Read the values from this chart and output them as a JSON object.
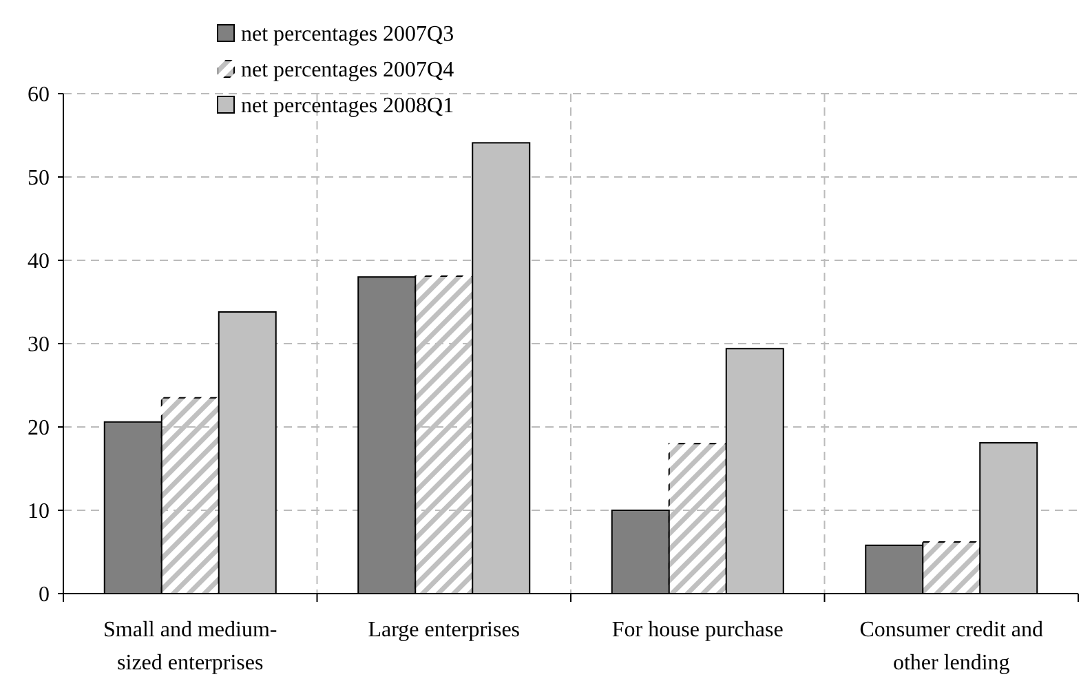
{
  "chart_data": {
    "type": "bar",
    "categories": [
      "Small and medium-sized enterprises",
      "Large enterprises",
      "For house purchase",
      "Consumer credit and other lending"
    ],
    "series": [
      {
        "name": "net percentages 2007Q3",
        "color": "#808080",
        "values": [
          20.6,
          38,
          10,
          5.8
        ]
      },
      {
        "name": "net percentages 2007Q4",
        "color": "#c0c0c0",
        "values": [
          23.5,
          38.1,
          18,
          6.2
        ]
      },
      {
        "name": "net percentages 2008Q1",
        "color": "#c0c0c0",
        "values": [
          33.8,
          54.1,
          29.4,
          18.1
        ]
      }
    ],
    "ylim": [
      0,
      60
    ],
    "yticks": [
      0,
      10,
      20,
      30,
      40,
      50,
      60
    ],
    "grid": true,
    "legend": "top left"
  }
}
